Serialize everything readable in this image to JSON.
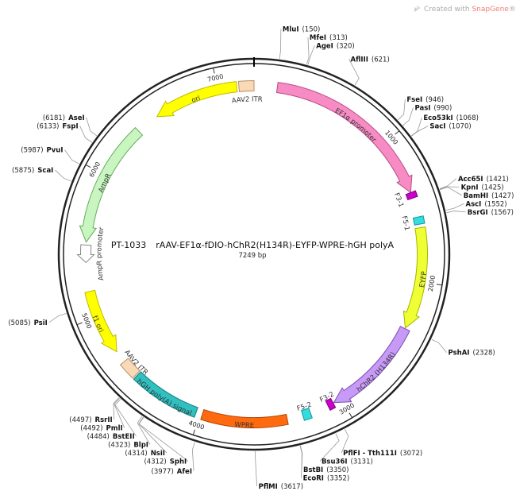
{
  "brand": {
    "prefix": "Created with ",
    "name": "SnapGene",
    "mark": "®",
    "accent": "#f07b74"
  },
  "plasmid": {
    "name": "PT-1033",
    "title": "rAAV-EF1α-fDIO-hChR2(H134R)-EYFP-WPRE-hGH polyA",
    "length_label": "7249 bp",
    "length": 7249
  },
  "ticks": [
    {
      "pos": 1000,
      "label": "1000"
    },
    {
      "pos": 2000,
      "label": "2000"
    },
    {
      "pos": 3000,
      "label": "3000"
    },
    {
      "pos": 4000,
      "label": "4000"
    },
    {
      "pos": 5000,
      "label": "5000"
    },
    {
      "pos": 6000,
      "label": "6000"
    },
    {
      "pos": 7000,
      "label": "7000"
    }
  ],
  "features": [
    {
      "name": "ori",
      "start": 6540,
      "end": 7130,
      "dir": -1,
      "color": "#ffff00",
      "stroke": "#bcbc00",
      "label_color": "#333"
    },
    {
      "name": "AAV2 ITR",
      "start": 7145,
      "end": 7249,
      "dir": 0,
      "color": "#f9d9b6",
      "stroke": "#b58f66",
      "label_color": "#333"
    },
    {
      "name": "EF1α promoter",
      "start": 160,
      "end": 1380,
      "dir": 1,
      "color": "#f78bc4",
      "stroke": "#b94d86",
      "label_color": "#333"
    },
    {
      "name": "F3-1",
      "start": 1380,
      "end": 1420,
      "dir": 0,
      "color": "#cc00cc",
      "stroke": "#800080",
      "label_color": "#333"
    },
    {
      "name": "F5-1",
      "start": 1555,
      "end": 1605,
      "dir": 0,
      "color": "#33dddd",
      "stroke": "#109999",
      "label_color": "#333"
    },
    {
      "name": "EYFP",
      "start": 1630,
      "end": 2335,
      "dir": 1,
      "color": "#eeff33",
      "stroke": "#a8b400",
      "label_color": "#333"
    },
    {
      "name": "hChR2 (H134R)",
      "start": 2340,
      "end": 3055,
      "dir": 1,
      "color": "#c89af7",
      "stroke": "#7b4cb3",
      "label_color": "#ffffff"
    },
    {
      "name": "F3-2",
      "start": 3060,
      "end": 3100,
      "dir": 0,
      "color": "#cc00cc",
      "stroke": "#800080",
      "label_color": "#333"
    },
    {
      "name": "F5-2",
      "start": 3230,
      "end": 3285,
      "dir": 0,
      "color": "#33dddd",
      "stroke": "#109999",
      "label_color": "#333"
    },
    {
      "name": "WPRE",
      "start": 3395,
      "end": 3985,
      "dir": 0,
      "color": "#ff6a10",
      "stroke": "#b24400",
      "label_color": "#ffffff"
    },
    {
      "name": "hGH poly(A) signal",
      "start": 4030,
      "end": 4510,
      "dir": 0,
      "color": "#30c0c0",
      "stroke": "#128080",
      "label_color": "#333"
    },
    {
      "name": "AAV2 ITR",
      "start": 4520,
      "end": 4640,
      "dir": 0,
      "color": "#f9d9b6",
      "stroke": "#b58f66",
      "label_color": "#333"
    },
    {
      "name": "f1 ori",
      "start": 4725,
      "end": 5180,
      "dir": -1,
      "color": "#ffff00",
      "stroke": "#bcbc00",
      "label_color": "#333"
    },
    {
      "name": "AmpR promoter",
      "start": 5380,
      "end": 5500,
      "dir": -1,
      "color": "#ffffff",
      "stroke": "#888888",
      "label_color": "#333"
    },
    {
      "name": "AmpR",
      "start": 5520,
      "end": 6380,
      "dir": -1,
      "color": "#c8f5c0",
      "stroke": "#62ad5a",
      "label_color": "#333"
    }
  ],
  "sites": [
    {
      "name": "MluI",
      "pos_label": "(150)",
      "pos": 150
    },
    {
      "name": "MfeI",
      "pos_label": "(313)",
      "pos": 313
    },
    {
      "name": "AgeI",
      "pos_label": "(320)",
      "pos": 320
    },
    {
      "name": "AflIII",
      "pos_label": "(621)",
      "pos": 621
    },
    {
      "name": "FseI",
      "pos_label": "(946)",
      "pos": 946
    },
    {
      "name": "PasI",
      "pos_label": "(990)",
      "pos": 990
    },
    {
      "name": "Eco53kI",
      "pos_label": "(1068)",
      "pos": 1068
    },
    {
      "name": "SacI",
      "pos_label": "(1070)",
      "pos": 1070
    },
    {
      "name": "Acc65I",
      "pos_label": "(1421)",
      "pos": 1421
    },
    {
      "name": "KpnI",
      "pos_label": "(1425)",
      "pos": 1425
    },
    {
      "name": "BamHI",
      "pos_label": "(1427)",
      "pos": 1427
    },
    {
      "name": "AscI",
      "pos_label": "(1552)",
      "pos": 1552
    },
    {
      "name": "BsrGI",
      "pos_label": "(1567)",
      "pos": 1567
    },
    {
      "name": "PshAI",
      "pos_label": "(2328)",
      "pos": 2328
    },
    {
      "name": "PflFI - Tth111I",
      "pos_label": "(3072)",
      "pos": 3072
    },
    {
      "name": "Bsu36I",
      "pos_label": "(3131)",
      "pos": 3131
    },
    {
      "name": "BstBI",
      "pos_label": "(3350)",
      "pos": 3350
    },
    {
      "name": "EcoRI",
      "pos_label": "(3352)",
      "pos": 3352
    },
    {
      "name": "PflMI",
      "pos_label": "(3617)",
      "pos": 3617
    },
    {
      "name": "AfeI",
      "pos_label": "(3977)",
      "pos": 3977
    },
    {
      "name": "SphI",
      "pos_label": "(4312)",
      "pos": 4312
    },
    {
      "name": "NsiI",
      "pos_label": "(4314)",
      "pos": 4314
    },
    {
      "name": "BlpI",
      "pos_label": "(4323)",
      "pos": 4323
    },
    {
      "name": "BstEII",
      "pos_label": "(4484)",
      "pos": 4484
    },
    {
      "name": "PmlI",
      "pos_label": "(4492)",
      "pos": 4492
    },
    {
      "name": "RsrII",
      "pos_label": "(4497)",
      "pos": 4497
    },
    {
      "name": "PsiI",
      "pos_label": "(5085)",
      "pos": 5085
    },
    {
      "name": "ScaI",
      "pos_label": "(5875)",
      "pos": 5875
    },
    {
      "name": "PvuI",
      "pos_label": "(5987)",
      "pos": 5987
    },
    {
      "name": "FspI",
      "pos_label": "(6133)",
      "pos": 6133
    },
    {
      "name": "AseI",
      "pos_label": "(6181)",
      "pos": 6181
    }
  ]
}
